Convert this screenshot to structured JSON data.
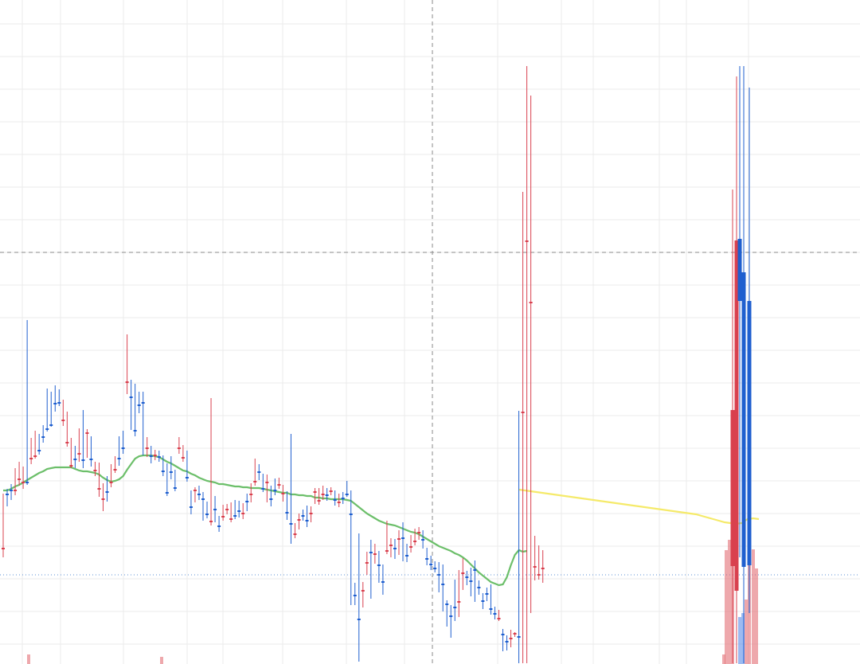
{
  "chart_data": {
    "type": "candlestick",
    "title": "",
    "xlabel": "",
    "ylabel": "",
    "grid": true,
    "legend": "none",
    "x": [
      0,
      1,
      2,
      3,
      4,
      5,
      6,
      7,
      8,
      9,
      10,
      11,
      12,
      13,
      14,
      15,
      16,
      17,
      18,
      19,
      20,
      21,
      22,
      23,
      24,
      25,
      26,
      27,
      28,
      29,
      30,
      31,
      32,
      33,
      34,
      35,
      36,
      37,
      38,
      39,
      40,
      41,
      42,
      43,
      44,
      45,
      46,
      47,
      48,
      49,
      50,
      51,
      52,
      53,
      54,
      55,
      56,
      57,
      58,
      59,
      60,
      61,
      62,
      63,
      64,
      65,
      66,
      67,
      68,
      69,
      70,
      71,
      72,
      73,
      74,
      75,
      76,
      77,
      78,
      79,
      80,
      81,
      82,
      83,
      84,
      85,
      86,
      87,
      88,
      89,
      90,
      91,
      92,
      93,
      94,
      95,
      96,
      97,
      98,
      99,
      100,
      101,
      102,
      103,
      104,
      105,
      106,
      107,
      108,
      109,
      110,
      111,
      112,
      113,
      114,
      115,
      116,
      117,
      118,
      119,
      120,
      121,
      122,
      123,
      124,
      125,
      126,
      127,
      128,
      129,
      130,
      131,
      132,
      133,
      134,
      135,
      136,
      137,
      138,
      139,
      140,
      141,
      142,
      143,
      144,
      145,
      146,
      147,
      148,
      149,
      150,
      151,
      152,
      153,
      154,
      155,
      156,
      157,
      158,
      159,
      160,
      161,
      162,
      163,
      164,
      165,
      166,
      167,
      168,
      169,
      170,
      171,
      172,
      173,
      174,
      175,
      176,
      177,
      178,
      179,
      180,
      181,
      182,
      183,
      184,
      185,
      186,
      187,
      188,
      189,
      190
    ],
    "xlim": [
      -1,
      216
    ],
    "ylim": [
      0,
      834
    ],
    "y_inverted": true,
    "ohlc": [
      [
        689,
        688,
        620,
        700
      ],
      [
        620,
        621,
        614,
        636
      ],
      [
        615,
        616,
        608,
        628
      ],
      [
        616,
        615,
        588,
        622
      ],
      [
        602,
        601,
        580,
        610
      ],
      [
        606,
        605,
        586,
        614
      ],
      [
        605,
        606,
        402,
        609
      ],
      [
        575,
        575,
        550,
        583
      ],
      [
        573,
        572,
        541,
        576
      ],
      [
        565,
        566,
        545,
        571
      ],
      [
        548,
        549,
        534,
        556
      ],
      [
        538,
        539,
        488,
        542
      ],
      [
        533,
        534,
        492,
        536
      ],
      [
        506,
        507,
        484,
        517
      ],
      [
        505,
        506,
        489,
        510
      ],
      [
        528,
        527,
        502,
        535
      ],
      [
        556,
        555,
        517,
        561
      ],
      [
        585,
        584,
        550,
        588
      ],
      [
        576,
        577,
        560,
        588
      ],
      [
        570,
        569,
        538,
        580
      ],
      [
        577,
        578,
        515,
        588
      ],
      [
        544,
        543,
        539,
        575
      ],
      [
        576,
        577,
        548,
        586
      ],
      [
        591,
        590,
        580,
        598
      ],
      [
        614,
        613,
        581,
        624
      ],
      [
        627,
        626,
        607,
        642
      ],
      [
        617,
        618,
        598,
        630
      ],
      [
        606,
        605,
        583,
        612
      ],
      [
        590,
        589,
        573,
        594
      ],
      [
        575,
        576,
        548,
        585
      ],
      [
        562,
        563,
        541,
        570
      ],
      [
        480,
        479,
        420,
        495
      ],
      [
        498,
        499,
        477,
        540
      ],
      [
        540,
        541,
        482,
        548
      ],
      [
        508,
        509,
        492,
        519
      ],
      [
        505,
        506,
        492,
        572
      ],
      [
        563,
        562,
        549,
        574
      ],
      [
        572,
        573,
        560,
        582
      ],
      [
        572,
        571,
        565,
        578
      ],
      [
        573,
        574,
        566,
        580
      ],
      [
        591,
        592,
        572,
        598
      ],
      [
        618,
        619,
        582,
        623
      ],
      [
        592,
        593,
        573,
        602
      ],
      [
        612,
        613,
        590,
        617
      ],
      [
        563,
        562,
        549,
        570
      ],
      [
        575,
        574,
        559,
        580
      ],
      [
        599,
        600,
        566,
        605
      ],
      [
        636,
        637,
        616,
        646
      ],
      [
        616,
        615,
        612,
        631
      ],
      [
        620,
        621,
        610,
        628
      ],
      [
        626,
        627,
        618,
        654
      ],
      [
        645,
        646,
        630,
        651
      ],
      [
        655,
        654,
        500,
        660
      ],
      [
        639,
        640,
        623,
        656
      ],
      [
        660,
        661,
        648,
        668
      ],
      [
        649,
        648,
        634,
        654
      ],
      [
        640,
        639,
        633,
        646
      ],
      [
        652,
        651,
        631,
        656
      ],
      [
        647,
        648,
        628,
        652
      ],
      [
        641,
        642,
        629,
        650
      ],
      [
        645,
        644,
        632,
        652
      ],
      [
        629,
        630,
        620,
        642
      ],
      [
        621,
        620,
        607,
        631
      ],
      [
        605,
        604,
        576,
        610
      ],
      [
        592,
        593,
        583,
        603
      ],
      [
        613,
        614,
        595,
        618
      ],
      [
        606,
        605,
        596,
        631
      ],
      [
        626,
        627,
        610,
        636
      ],
      [
        615,
        616,
        601,
        622
      ],
      [
        609,
        608,
        600,
        614
      ],
      [
        620,
        619,
        609,
        630
      ],
      [
        643,
        644,
        617,
        653
      ],
      [
        657,
        658,
        545,
        683
      ],
      [
        671,
        670,
        657,
        676
      ],
      [
        653,
        652,
        645,
        665
      ],
      [
        647,
        648,
        640,
        654
      ],
      [
        653,
        654,
        635,
        662
      ],
      [
        645,
        644,
        636,
        656
      ],
      [
        618,
        617,
        613,
        633
      ],
      [
        629,
        628,
        613,
        634
      ],
      [
        621,
        620,
        610,
        628
      ],
      [
        621,
        622,
        613,
        629
      ],
      [
        617,
        616,
        612,
        622
      ],
      [
        627,
        628,
        616,
        635
      ],
      [
        631,
        630,
        620,
        637
      ],
      [
        625,
        626,
        618,
        633
      ],
      [
        620,
        621,
        604,
        624
      ],
      [
        645,
        646,
        616,
        760
      ],
      [
        747,
        748,
        732,
        760
      ],
      [
        777,
        778,
        670,
        831
      ],
      [
        742,
        741,
        731,
        763
      ],
      [
        707,
        706,
        693,
        722
      ],
      [
        693,
        694,
        678,
        752
      ],
      [
        696,
        695,
        683,
        708
      ],
      [
        709,
        710,
        692,
        732
      ],
      [
        730,
        731,
        709,
        747
      ],
      [
        692,
        691,
        654,
        696
      ],
      [
        685,
        684,
        676,
        700
      ],
      [
        688,
        689,
        677,
        702
      ],
      [
        677,
        676,
        666,
        697
      ],
      [
        675,
        676,
        656,
        705
      ],
      [
        697,
        698,
        683,
        706
      ],
      [
        687,
        686,
        672,
        694
      ],
      [
        680,
        679,
        664,
        685
      ],
      [
        669,
        668,
        662,
        678
      ],
      [
        677,
        678,
        666,
        689
      ],
      [
        701,
        702,
        688,
        710
      ],
      [
        708,
        709,
        698,
        716
      ],
      [
        713,
        714,
        705,
        719
      ],
      [
        721,
        722,
        706,
        744
      ],
      [
        733,
        734,
        709,
        768
      ],
      [
        758,
        759,
        754,
        787
      ],
      [
        773,
        774,
        760,
        801
      ],
      [
        762,
        763,
        728,
        780
      ],
      [
        756,
        755,
        716,
        775
      ],
      [
        720,
        719,
        701,
        741
      ],
      [
        724,
        725,
        717,
        735
      ],
      [
        729,
        730,
        713,
        749
      ],
      [
        715,
        716,
        704,
        756
      ],
      [
        737,
        738,
        729,
        747
      ],
      [
        754,
        755,
        745,
        765
      ],
      [
        745,
        746,
        738,
        755
      ],
      [
        764,
        765,
        734,
        772
      ],
      [
        770,
        771,
        762,
        778
      ],
      [
        777,
        776,
        766,
        780
      ],
      [
        796,
        797,
        790,
        818
      ],
      [
        805,
        806,
        798,
        817
      ],
      [
        802,
        801,
        791,
        813
      ],
      [
        796,
        795,
        794,
        800
      ],
      [
        799,
        800,
        516,
        833
      ],
      [
        518,
        517,
        241,
        833
      ],
      [
        303,
        302,
        83,
        833
      ],
      [
        380,
        379,
        120,
        770
      ],
      [
        712,
        711,
        673,
        729
      ],
      [
        722,
        721,
        685,
        728
      ],
      [
        714,
        713,
        691,
        732
      ]
    ],
    "ma_green": [
      616,
      616,
      614,
      611,
      609,
      606,
      603,
      600,
      597,
      594,
      592,
      589,
      588,
      587,
      587,
      587,
      587,
      587,
      589,
      591,
      592,
      592,
      593,
      594,
      596,
      600,
      603,
      605,
      604,
      602,
      598,
      590,
      583,
      576,
      573,
      572,
      572,
      572,
      573,
      574,
      577,
      580,
      582,
      585,
      588,
      591,
      592,
      595,
      597,
      600,
      602,
      604,
      605,
      606,
      608,
      608,
      609,
      610,
      611,
      611,
      612,
      612,
      613,
      613,
      613,
      614,
      615,
      616,
      617,
      618,
      619,
      619,
      621,
      621,
      622,
      622,
      623,
      623,
      625,
      625,
      626,
      626,
      627,
      627,
      627,
      627,
      628,
      629,
      633,
      637,
      641,
      645,
      648,
      651,
      654,
      656,
      658,
      659,
      660,
      662,
      664,
      666,
      668,
      669,
      671,
      674,
      677,
      680,
      683,
      686,
      688,
      690,
      692,
      695,
      697,
      700,
      704,
      709,
      714,
      719,
      723,
      727,
      731,
      733,
      735,
      734,
      725,
      710,
      697,
      691,
      693,
      692
    ],
    "ma_yellow": [
      615,
      616,
      617,
      618,
      619,
      620,
      621,
      622,
      623,
      624,
      625,
      626,
      627,
      628,
      629,
      630,
      631,
      632,
      633,
      634,
      635,
      636,
      637,
      638,
      639,
      640,
      641,
      642,
      643,
      644,
      645,
      646,
      648,
      650,
      652,
      654,
      656,
      657,
      658,
      657,
      652,
      651,
      652
    ],
    "volume": [
      [
        822,
        834,
        "red"
      ],
      [
        825,
        834,
        "red"
      ],
      [
        822,
        834,
        "red"
      ],
      [
        691,
        834,
        "red"
      ],
      [
        678,
        834,
        "red"
      ],
      [
        685,
        834,
        "red"
      ],
      [
        775,
        834,
        "blue"
      ],
      [
        770,
        834,
        "blue"
      ],
      [
        753,
        834,
        "red"
      ],
      [
        688,
        834,
        "red"
      ],
      [
        690,
        834,
        "red"
      ],
      [
        714,
        834,
        "red"
      ]
    ]
  }
}
